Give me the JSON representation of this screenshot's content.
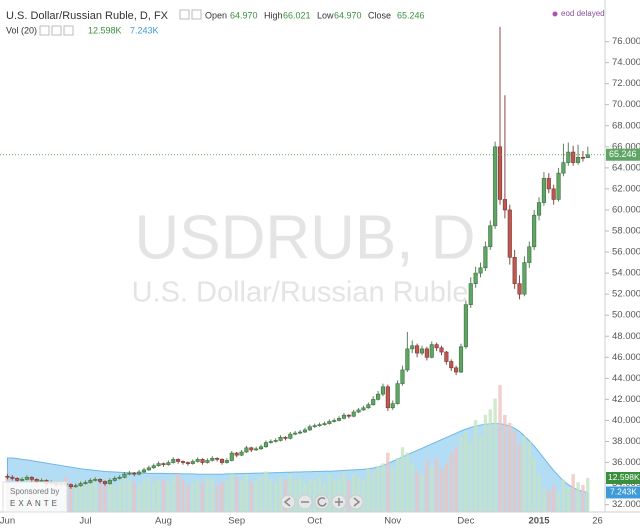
{
  "chart_data": {
    "type": "candlestick",
    "title": "U.S. Dollar/Russian Ruble, D, FX",
    "ohlc_labels": [
      "Open",
      "High",
      "Low",
      "Close"
    ],
    "ohlc_values": [
      "64.970",
      "66.021",
      "64.970",
      "65.246"
    ],
    "status": "eod delayed",
    "symbol_watermark": "USDRUB, D",
    "name_watermark": "U.S. Dollar/Russian Ruble",
    "volume_name": "Vol (20)",
    "volume_label": "12.598K",
    "volume_ma_label": "7.243K",
    "up_color": "#5fa563",
    "down_color": "#bd5750",
    "volume_up_color": "#c6e3c3",
    "volume_down_color": "#ecc4c1",
    "volume_ma_color": "#9ad0f2",
    "categories": [
      "Jun",
      null,
      null,
      null,
      null,
      null,
      null,
      null,
      null,
      null,
      null,
      null,
      null,
      null,
      null,
      null,
      "Jul",
      null,
      null,
      null,
      null,
      null,
      null,
      null,
      null,
      null,
      null,
      null,
      null,
      null,
      null,
      null,
      "Aug",
      null,
      null,
      null,
      null,
      null,
      null,
      null,
      null,
      null,
      null,
      null,
      null,
      null,
      null,
      "Sep",
      null,
      null,
      null,
      null,
      null,
      null,
      null,
      null,
      null,
      null,
      null,
      null,
      null,
      null,
      null,
      "Oct",
      null,
      null,
      null,
      null,
      null,
      null,
      null,
      null,
      null,
      null,
      null,
      null,
      null,
      null,
      null,
      "Nov",
      null,
      null,
      null,
      null,
      null,
      null,
      null,
      null,
      null,
      null,
      null,
      null,
      null,
      null,
      "Dec",
      null,
      null,
      null,
      null,
      null,
      null,
      null,
      null,
      null,
      null,
      null,
      null,
      null,
      null,
      "2015",
      null,
      null,
      null,
      null,
      null,
      null,
      null,
      null,
      null,
      null,
      null,
      "26"
    ],
    "open": [
      34.7,
      34.6,
      34.5,
      34.3,
      34.4,
      34.6,
      34.4,
      34.2,
      34.3,
      34.0,
      34.1,
      33.9,
      34.0,
      33.9,
      33.7,
      33.8,
      34.0,
      34.1,
      34.3,
      34.4,
      34.2,
      34.0,
      34.3,
      34.5,
      34.6,
      34.9,
      35.0,
      34.9,
      35.1,
      35.3,
      35.5,
      35.7,
      35.9,
      35.8,
      36.0,
      36.3,
      36.1,
      36.0,
      35.9,
      36.1,
      36.3,
      36.0,
      36.2,
      36.4,
      36.3,
      36.0,
      36.2,
      36.9,
      36.7,
      37.0,
      37.4,
      37.2,
      37.3,
      37.5,
      37.9,
      38.0,
      38.1,
      38.4,
      38.3,
      38.7,
      38.8,
      38.9,
      39.1,
      39.4,
      39.5,
      39.6,
      39.7,
      39.9,
      40.0,
      40.2,
      40.5,
      40.4,
      40.8,
      41.0,
      41.2,
      41.5,
      42.0,
      42.5,
      43.2,
      41.2,
      41.6,
      43.5,
      44.8,
      46.8,
      47.1,
      46.4,
      46.8,
      46.0,
      47.2,
      46.9,
      46.5,
      45.6,
      45.0,
      44.6,
      47.0,
      51.0,
      53.0,
      54.0,
      54.5,
      56.5,
      58.5,
      66.0,
      61.0,
      60.0,
      55.5,
      53.0,
      52.0,
      55.0,
      56.5,
      59.5,
      60.7,
      63.0,
      62.0,
      61.0,
      63.5,
      64.5,
      65.5,
      64.5,
      65.0,
      64.97,
      null,
      null
    ],
    "high": [
      34.9,
      34.8,
      34.6,
      34.6,
      34.8,
      34.7,
      34.5,
      34.5,
      34.4,
      34.3,
      34.2,
      34.2,
      34.1,
      34.0,
      34.0,
      34.2,
      34.3,
      34.5,
      34.6,
      34.5,
      34.3,
      34.5,
      34.7,
      34.8,
      35.1,
      35.2,
      35.1,
      35.3,
      35.5,
      35.7,
      35.9,
      36.1,
      36.0,
      36.2,
      36.5,
      36.4,
      36.2,
      36.1,
      36.3,
      36.5,
      36.4,
      36.4,
      36.6,
      36.5,
      36.4,
      36.4,
      37.1,
      37.0,
      37.2,
      37.6,
      37.5,
      37.5,
      37.7,
      38.1,
      38.2,
      38.3,
      38.6,
      38.5,
      38.9,
      39.0,
      39.1,
      39.3,
      39.6,
      39.7,
      39.8,
      39.9,
      40.1,
      40.2,
      40.4,
      40.7,
      40.6,
      41.0,
      41.2,
      41.4,
      41.7,
      42.3,
      42.8,
      43.5,
      43.4,
      41.9,
      43.8,
      45.2,
      48.4,
      47.6,
      47.3,
      47.1,
      47.0,
      47.5,
      47.4,
      47.1,
      46.6,
      45.8,
      45.2,
      47.3,
      51.4,
      53.6,
      54.6,
      55.0,
      57.0,
      59.0,
      66.5,
      77.4,
      70.9,
      60.5,
      56.2,
      53.8,
      55.6,
      57.0,
      60.0,
      61.2,
      63.6,
      63.5,
      62.4,
      64.0,
      66.3,
      66.4,
      66.1,
      66.2,
      65.6,
      66.021,
      null,
      null
    ],
    "low": [
      34.4,
      34.3,
      34.1,
      34.2,
      34.3,
      34.2,
      34.0,
      34.1,
      33.8,
      33.9,
      33.7,
      33.8,
      33.7,
      33.5,
      33.6,
      33.7,
      33.9,
      34.0,
      34.2,
      34.0,
      33.8,
      33.9,
      34.2,
      34.4,
      34.5,
      34.8,
      34.7,
      34.8,
      35.0,
      35.2,
      35.4,
      35.6,
      35.6,
      35.7,
      35.9,
      35.9,
      35.8,
      35.7,
      35.8,
      36.0,
      35.8,
      35.9,
      36.1,
      36.1,
      35.8,
      35.9,
      36.1,
      36.5,
      36.6,
      36.9,
      37.0,
      37.1,
      37.2,
      37.4,
      37.8,
      37.9,
      38.0,
      38.1,
      38.2,
      38.6,
      38.7,
      38.8,
      39.0,
      39.3,
      39.4,
      39.5,
      39.6,
      39.8,
      39.9,
      40.1,
      40.2,
      40.3,
      40.7,
      40.9,
      41.1,
      41.4,
      41.9,
      42.3,
      40.9,
      41.0,
      41.5,
      43.3,
      44.6,
      46.4,
      46.0,
      46.2,
      45.7,
      45.9,
      46.6,
      46.2,
      45.3,
      44.7,
      44.3,
      44.5,
      46.8,
      50.7,
      52.6,
      53.6,
      54.2,
      56.2,
      58.2,
      60.5,
      59.2,
      54.8,
      52.5,
      51.5,
      51.8,
      54.5,
      56.2,
      59.0,
      60.4,
      61.6,
      60.5,
      60.8,
      63.2,
      64.2,
      64.2,
      64.3,
      64.6,
      64.97,
      null,
      null
    ],
    "close": [
      34.6,
      34.5,
      34.3,
      34.4,
      34.6,
      34.4,
      34.2,
      34.3,
      34.0,
      34.1,
      33.9,
      34.0,
      33.9,
      33.7,
      33.8,
      34.0,
      34.1,
      34.3,
      34.4,
      34.2,
      34.0,
      34.3,
      34.5,
      34.6,
      34.9,
      35.0,
      34.9,
      35.1,
      35.3,
      35.5,
      35.7,
      35.9,
      35.8,
      36.0,
      36.3,
      36.1,
      36.0,
      35.9,
      36.1,
      36.3,
      36.0,
      36.2,
      36.4,
      36.3,
      36.0,
      36.2,
      36.9,
      36.7,
      37.0,
      37.4,
      37.2,
      37.3,
      37.5,
      37.9,
      38.0,
      38.1,
      38.4,
      38.3,
      38.7,
      38.8,
      38.9,
      39.1,
      39.4,
      39.5,
      39.6,
      39.7,
      39.9,
      40.0,
      40.2,
      40.5,
      40.4,
      40.8,
      41.0,
      41.2,
      41.5,
      42.0,
      42.5,
      43.2,
      41.2,
      41.6,
      43.5,
      44.8,
      46.8,
      47.1,
      46.4,
      46.8,
      46.0,
      47.2,
      46.9,
      46.5,
      45.6,
      45.0,
      44.6,
      47.0,
      51.0,
      53.0,
      54.0,
      54.5,
      56.5,
      58.5,
      66.0,
      61.0,
      60.0,
      55.5,
      53.0,
      52.0,
      55.0,
      56.5,
      59.5,
      60.7,
      63.0,
      62.0,
      61.0,
      63.5,
      64.5,
      65.5,
      64.5,
      65.0,
      64.97,
      65.246,
      null,
      null
    ],
    "volume": [
      13,
      11,
      12,
      10,
      14,
      12,
      11,
      13,
      12,
      10,
      11,
      12,
      13,
      11,
      10,
      12,
      11,
      12,
      13,
      10,
      11,
      12,
      10,
      11,
      13,
      12,
      11,
      10,
      12,
      13,
      11,
      12,
      12,
      11,
      13,
      14,
      12,
      10,
      11,
      12,
      11,
      13,
      12,
      10,
      11,
      12,
      14,
      13,
      12,
      14,
      11,
      12,
      13,
      15,
      12,
      11,
      13,
      12,
      14,
      12,
      13,
      11,
      12,
      12,
      13,
      11,
      14,
      12,
      13,
      15,
      12,
      14,
      13,
      12,
      16,
      15,
      17,
      18,
      22,
      16,
      20,
      24,
      22,
      18,
      15,
      14,
      19,
      17,
      20,
      16,
      18,
      22,
      24,
      28,
      30,
      26,
      34,
      28,
      36,
      38,
      42,
      47,
      36,
      33,
      30,
      25,
      28,
      26,
      20,
      14,
      9,
      8,
      10,
      7,
      12,
      9,
      14,
      11,
      10,
      12.598,
      null,
      null
    ],
    "volume_ma": [
      20,
      20,
      19.8,
      19.5,
      19.3,
      19,
      18.7,
      18.4,
      18.1,
      17.8,
      17.5,
      17.2,
      16.9,
      16.6,
      16.3,
      16,
      15.8,
      15.6,
      15.4,
      15.2,
      15,
      14.9,
      14.8,
      14.7,
      14.6,
      14.5,
      14.5,
      14.4,
      14.4,
      14.3,
      14.3,
      14.3,
      14.3,
      14.2,
      14.2,
      14.2,
      14.1,
      14.1,
      14.1,
      14,
      14,
      14,
      14,
      14,
      14,
      14.1,
      14.1,
      14.2,
      14.2,
      14.3,
      14.3,
      14.4,
      14.4,
      14.5,
      14.5,
      14.6,
      14.6,
      14.7,
      14.7,
      14.8,
      14.8,
      14.9,
      14.9,
      15,
      15,
      15.1,
      15.1,
      15.2,
      15.3,
      15.4,
      15.5,
      15.6,
      15.7,
      15.8,
      16,
      16.3,
      16.7,
      17.2,
      18,
      18.8,
      19.6,
      20.4,
      21.2,
      22,
      22.8,
      23.6,
      24.4,
      25.2,
      26,
      26.8,
      27.6,
      28.4,
      29.2,
      30,
      30.7,
      31.3,
      31.8,
      32.2,
      32.5,
      32.7,
      32.8,
      32.7,
      32.4,
      31.8,
      31,
      29.8,
      28.2,
      26.4,
      24.4,
      22.2,
      19.9,
      17.6,
      15.4,
      13.4,
      11.6,
      10.1,
      9,
      8.2,
      7.6,
      7.243,
      null,
      null
    ],
    "vlim": [
      0,
      50
    ],
    "ylim": [
      31.3,
      79.0
    ],
    "yticks": [
      {
        "value": 32,
        "label": "32.000"
      },
      {
        "value": 34,
        "label": "34.000"
      },
      {
        "value": 36,
        "label": "36.000"
      },
      {
        "value": 38,
        "label": "38.000"
      },
      {
        "value": 40,
        "label": "40.000"
      },
      {
        "value": 42,
        "label": "42.000"
      },
      {
        "value": 44,
        "label": "44.000"
      },
      {
        "value": 46,
        "label": "46.000"
      },
      {
        "value": 48,
        "label": "48.000"
      },
      {
        "value": 50,
        "label": "50.000"
      },
      {
        "value": 52,
        "label": "52.000"
      },
      {
        "value": 54,
        "label": "54.000"
      },
      {
        "value": 56,
        "label": "56.000"
      },
      {
        "value": 58,
        "label": "58.000"
      },
      {
        "value": 60,
        "label": "60.000"
      },
      {
        "value": 62,
        "label": "62.000"
      },
      {
        "value": 64,
        "label": "64.000"
      },
      {
        "value": 66,
        "label": "66.000"
      },
      {
        "value": 68,
        "label": "68.000"
      },
      {
        "value": 70,
        "label": "70.000"
      },
      {
        "value": 72,
        "label": "72.000"
      },
      {
        "value": 74,
        "label": "74.000"
      },
      {
        "value": 76,
        "label": "76.000"
      }
    ],
    "grid": false
  },
  "sponsor": {
    "text": "Sponsored by",
    "brand": "EXANTE"
  }
}
